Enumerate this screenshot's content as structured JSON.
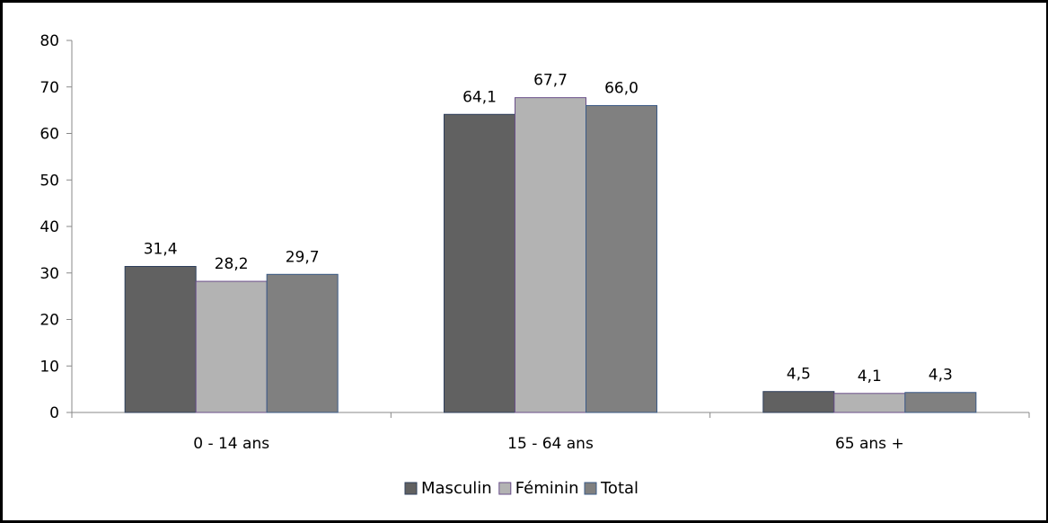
{
  "chart_data": {
    "type": "bar",
    "title": "",
    "xlabel": "",
    "ylabel": "",
    "categories": [
      "0 - 14 ans",
      "15 - 64 ans",
      "65 ans +"
    ],
    "series": [
      {
        "name": "Masculin",
        "values": [
          31.4,
          64.1,
          4.5
        ],
        "labels": [
          "31,4",
          "64,1",
          "4,5"
        ],
        "color": "#616161",
        "border": "#2e3f5c"
      },
      {
        "name": "Féminin",
        "values": [
          28.2,
          67.7,
          4.1
        ],
        "labels": [
          "28,2",
          "67,7",
          "4,1"
        ],
        "color": "#b3b3b3",
        "border": "#6a4f8a"
      },
      {
        "name": "Total",
        "values": [
          29.7,
          66.0,
          4.3
        ],
        "labels": [
          "29,7",
          "66,0",
          "4,3"
        ],
        "color": "#808080",
        "border": "#3a5a86"
      }
    ],
    "ylim": [
      0,
      80
    ],
    "yticks": [
      0,
      10,
      20,
      30,
      40,
      50,
      60,
      70,
      80
    ],
    "grid": false,
    "legend": "bottom-center"
  }
}
